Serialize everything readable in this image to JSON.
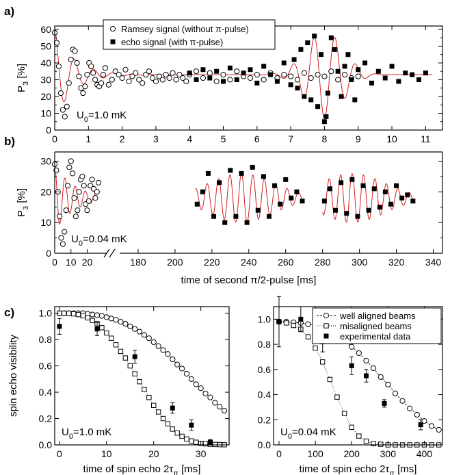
{
  "figure": {
    "panel_labels": [
      "a)",
      "b)",
      "c)"
    ]
  },
  "chart_data": [
    {
      "id": "a",
      "type": "scatter",
      "panel_label": "a)",
      "xlabel": "",
      "ylabel_main": "P",
      "ylabel_sub": "3",
      "ylabel_unit": " [%]",
      "xlim": [
        0,
        11.5
      ],
      "ylim": [
        0,
        62
      ],
      "xticks": [
        0,
        1,
        2,
        3,
        4,
        5,
        6,
        7,
        8,
        9,
        10,
        11
      ],
      "yticks": [
        0,
        5,
        10,
        15,
        20,
        25,
        30,
        35,
        40,
        45,
        50,
        55,
        60
      ],
      "ytick_labels_shown": [
        0,
        10,
        20,
        30,
        40,
        50,
        60
      ],
      "annotation": {
        "main": "U",
        "sub": "0",
        "rest": "=1.0 mK"
      },
      "legend": [
        {
          "marker": "open-circle",
          "label": "Ramsey signal (without π-pulse)"
        },
        {
          "marker": "filled-square",
          "label": "echo signal (with π-pulse)"
        }
      ],
      "fit_color": "#d42020",
      "series": [
        {
          "name": "Ramsey signal (without π-pulse)",
          "marker": "open-circle",
          "x": [
            0.0,
            0.06,
            0.12,
            0.18,
            0.24,
            0.3,
            0.36,
            0.42,
            0.48,
            0.54,
            0.6,
            0.66,
            0.72,
            0.78,
            0.84,
            0.9,
            0.96,
            1.02,
            1.08,
            1.14,
            1.2,
            1.26,
            1.32,
            1.38,
            1.44,
            1.5,
            1.6,
            1.7,
            1.8,
            1.9,
            2.0,
            2.1,
            2.2,
            2.3,
            2.4,
            2.5,
            2.6,
            2.7,
            2.8,
            2.9,
            3.0,
            3.1,
            3.2,
            3.3,
            3.4,
            3.5,
            3.6,
            3.7,
            3.8,
            3.9,
            4.0,
            4.2,
            4.4,
            4.6,
            4.8,
            5.0,
            5.2,
            5.4,
            5.6,
            5.8,
            6.0,
            6.2,
            6.4,
            6.6,
            6.8,
            7.0,
            7.2,
            7.4,
            7.6,
            7.8,
            8.0,
            8.2,
            8.4,
            8.6,
            8.8,
            9.0
          ],
          "y": [
            58,
            52,
            38,
            22,
            12,
            8,
            14,
            28,
            42,
            48,
            47,
            40,
            32,
            25,
            22,
            26,
            33,
            40,
            38,
            34,
            30,
            27,
            26,
            28,
            33,
            37,
            27,
            30,
            35,
            33,
            31,
            36,
            29,
            32,
            34,
            30,
            28,
            33,
            35,
            31,
            29,
            32,
            30,
            33,
            31,
            34,
            30,
            33,
            31,
            29,
            33,
            35,
            31,
            34,
            29,
            33,
            30,
            35,
            32,
            31,
            33,
            30,
            34,
            31,
            33,
            32,
            30,
            34,
            31,
            33,
            32,
            35,
            30,
            33,
            31,
            32
          ]
        },
        {
          "name": "echo signal (with π-pulse)",
          "marker": "filled-square",
          "x": [
            4.0,
            4.2,
            4.4,
            4.6,
            4.8,
            5.0,
            5.2,
            5.4,
            5.6,
            5.8,
            6.0,
            6.2,
            6.4,
            6.6,
            6.8,
            7.0,
            7.1,
            7.2,
            7.3,
            7.4,
            7.5,
            7.6,
            7.7,
            7.8,
            7.9,
            8.0,
            8.05,
            8.1,
            8.2,
            8.3,
            8.4,
            8.5,
            8.6,
            8.7,
            8.8,
            8.9,
            9.0,
            9.2,
            9.4,
            9.6,
            9.8,
            10.0,
            10.2,
            10.4,
            10.6,
            10.8,
            11.0
          ],
          "y": [
            34,
            30,
            36,
            31,
            35,
            29,
            37,
            30,
            34,
            36,
            28,
            38,
            33,
            29,
            40,
            27,
            42,
            25,
            48,
            20,
            52,
            18,
            56,
            14,
            45,
            5,
            8,
            22,
            55,
            48,
            35,
            20,
            38,
            45,
            30,
            18,
            36,
            40,
            28,
            35,
            31,
            38,
            29,
            34,
            33,
            30,
            34
          ]
        }
      ]
    },
    {
      "id": "b",
      "type": "scatter",
      "panel_label": "b)",
      "xlabel": "time of second π/2-pulse [ms]",
      "ylabel_main": "P",
      "ylabel_sub": "3",
      "ylabel_unit": " [%]",
      "xlim_left": [
        0,
        32
      ],
      "xlim_right": [
        170,
        345
      ],
      "ylim": [
        0,
        33
      ],
      "xticks_left": [
        0,
        10,
        20
      ],
      "xticks_right": [
        180,
        200,
        220,
        240,
        260,
        280,
        300,
        320,
        340
      ],
      "yticks": [
        0,
        5,
        10,
        15,
        20,
        25,
        30
      ],
      "ytick_labels_shown": [
        0,
        10,
        20,
        30
      ],
      "annotation": {
        "main": "U",
        "sub": "0",
        "rest": "=0.04 mK"
      },
      "fit_color": "#d42020",
      "series": [
        {
          "name": "Ramsey signal (without π-pulse)",
          "marker": "open-circle",
          "x": [
            0,
            1,
            2,
            3,
            4,
            5,
            6,
            7,
            8,
            9,
            10,
            11,
            12,
            13,
            14,
            15,
            16,
            17,
            18,
            19,
            20,
            21,
            22,
            23,
            24,
            25,
            26,
            27
          ],
          "y": [
            29,
            27,
            20,
            12,
            5,
            3,
            7,
            14,
            22,
            28,
            30,
            26,
            18,
            12,
            14,
            20,
            24,
            25,
            22,
            16,
            14,
            17,
            22,
            24,
            21,
            18,
            20,
            23
          ]
        },
        {
          "name": "echo signal (with π-pulse)",
          "marker": "filled-square",
          "x": [
            212,
            215,
            218,
            221,
            224,
            227,
            230,
            233,
            236,
            239,
            242,
            245,
            248,
            251,
            254,
            257,
            260,
            263,
            266,
            269,
            281,
            284,
            287,
            290,
            293,
            296,
            299,
            302,
            305,
            308,
            311,
            314,
            317,
            320,
            323,
            326,
            329
          ],
          "y": [
            16,
            20,
            26,
            12,
            23,
            10,
            27,
            12,
            26,
            10,
            28,
            14,
            25,
            12,
            22,
            16,
            24,
            18,
            20,
            17,
            17,
            21,
            14,
            23,
            13,
            24,
            12,
            22,
            14,
            21,
            15,
            20,
            16,
            22,
            18,
            19,
            17
          ]
        }
      ]
    },
    {
      "id": "c-left",
      "type": "scatter",
      "panel_label": "c)",
      "xlabel": "time of spin echo 2τ",
      "xlabel_sub": "π",
      "xlabel_unit": "  [ms]",
      "ylabel": "spin echo visibility",
      "xlim": [
        -1,
        36
      ],
      "ylim": [
        0,
        1.05
      ],
      "xticks": [
        0,
        10,
        20,
        30
      ],
      "yticks": [
        0.0,
        0.2,
        0.4,
        0.6,
        0.8,
        1.0
      ],
      "ytick_labels": [
        "0.0",
        "0.2",
        "0.4",
        "0.6",
        "0.8",
        "1.0"
      ],
      "annotation": {
        "main": "U",
        "sub": "0",
        "rest": "=1.0 mK"
      },
      "series": [
        {
          "name": "well aligned beams",
          "marker": "open-circle",
          "x": [
            0,
            1,
            2,
            3,
            4,
            5,
            6,
            7,
            8,
            9,
            10,
            11,
            12,
            13,
            14,
            15,
            16,
            17,
            18,
            19,
            20,
            21,
            22,
            23,
            24,
            25,
            26,
            27,
            28,
            29,
            30,
            31,
            32,
            33,
            34,
            35
          ],
          "y": [
            1.0,
            1.0,
            1.0,
            1.0,
            1.0,
            1.0,
            0.995,
            0.99,
            0.985,
            0.98,
            0.97,
            0.96,
            0.95,
            0.935,
            0.92,
            0.9,
            0.88,
            0.86,
            0.835,
            0.81,
            0.78,
            0.75,
            0.72,
            0.69,
            0.65,
            0.61,
            0.58,
            0.54,
            0.5,
            0.46,
            0.43,
            0.39,
            0.36,
            0.32,
            0.29,
            0.26
          ]
        },
        {
          "name": "misaligned beams",
          "marker": "open-square",
          "x": [
            0,
            1,
            2,
            3,
            4,
            5,
            6,
            7,
            8,
            9,
            10,
            11,
            12,
            13,
            14,
            15,
            16,
            17,
            18,
            19,
            20,
            21,
            22,
            23,
            24,
            25,
            26,
            27,
            28,
            29,
            30,
            31,
            32,
            33,
            34,
            35
          ],
          "y": [
            1.0,
            1.0,
            1.0,
            0.995,
            0.99,
            0.98,
            0.965,
            0.945,
            0.92,
            0.89,
            0.85,
            0.81,
            0.76,
            0.71,
            0.66,
            0.6,
            0.54,
            0.48,
            0.42,
            0.36,
            0.3,
            0.25,
            0.2,
            0.16,
            0.12,
            0.09,
            0.065,
            0.045,
            0.03,
            0.02,
            0.012,
            0.008,
            0.005,
            0.003,
            0.002,
            0.001
          ]
        },
        {
          "name": "experimental data",
          "marker": "filled-square",
          "x": [
            0,
            8,
            16,
            24,
            28,
            32
          ],
          "y": [
            0.9,
            0.88,
            0.67,
            0.28,
            0.15,
            0.02
          ],
          "yerr": [
            0.06,
            0.05,
            0.05,
            0.04,
            0.04,
            0.02
          ]
        }
      ]
    },
    {
      "id": "c-right",
      "type": "scatter",
      "panel_label": "",
      "xlabel": "time of spin echo 2τ",
      "xlabel_sub": "π",
      "xlabel_unit": "  [ms]",
      "ylabel": "",
      "xlim": [
        -15,
        450
      ],
      "ylim": [
        0,
        1.1
      ],
      "xticks": [
        0,
        100,
        200,
        300,
        400
      ],
      "yticks": [
        0.0,
        0.2,
        0.4,
        0.6,
        0.8,
        1.0
      ],
      "ytick_labels": [
        "0.0",
        "0.2",
        "0.4",
        "0.6",
        "0.8",
        "1.0"
      ],
      "annotation": {
        "main": "U",
        "sub": "0",
        "rest": "=0.04 mK"
      },
      "legend_position": "top-right",
      "legend": [
        {
          "marker": "open-circle-dashed",
          "label": "well aligned beams"
        },
        {
          "marker": "open-square-dotted",
          "label": "misaligned beams"
        },
        {
          "marker": "filled-square",
          "label": "experimental data"
        }
      ],
      "series": [
        {
          "name": "well aligned beams",
          "marker": "open-circle",
          "x": [
            0,
            20,
            40,
            60,
            80,
            100,
            120,
            140,
            160,
            180,
            200,
            220,
            240,
            260,
            280,
            300,
            320,
            340,
            360,
            380,
            400,
            420,
            440
          ],
          "y": [
            0.98,
            0.98,
            0.975,
            0.97,
            0.96,
            0.95,
            0.93,
            0.905,
            0.87,
            0.83,
            0.78,
            0.73,
            0.67,
            0.61,
            0.54,
            0.48,
            0.41,
            0.35,
            0.29,
            0.24,
            0.19,
            0.15,
            0.12
          ]
        },
        {
          "name": "misaligned beams",
          "marker": "open-square",
          "x": [
            0,
            20,
            40,
            60,
            80,
            100,
            120,
            140,
            160,
            180,
            200,
            220,
            240,
            260,
            280,
            300,
            320,
            340,
            360,
            380,
            400,
            420,
            440
          ],
          "y": [
            0.98,
            0.97,
            0.95,
            0.92,
            0.86,
            0.77,
            0.66,
            0.52,
            0.38,
            0.25,
            0.14,
            0.07,
            0.03,
            0.01,
            0.005,
            0.0,
            0.0,
            0.0,
            0.0,
            0.0,
            0.0,
            0.0,
            0.0
          ]
        },
        {
          "name": "experimental data",
          "marker": "filled-square",
          "x": [
            0,
            60,
            120,
            200,
            240,
            290,
            390
          ],
          "y": [
            0.98,
            1.0,
            0.82,
            0.63,
            0.55,
            0.33,
            0.16
          ],
          "yerr": [
            0.2,
            0.1,
            0.08,
            0.07,
            0.05,
            0.03,
            0.04
          ]
        }
      ]
    }
  ]
}
